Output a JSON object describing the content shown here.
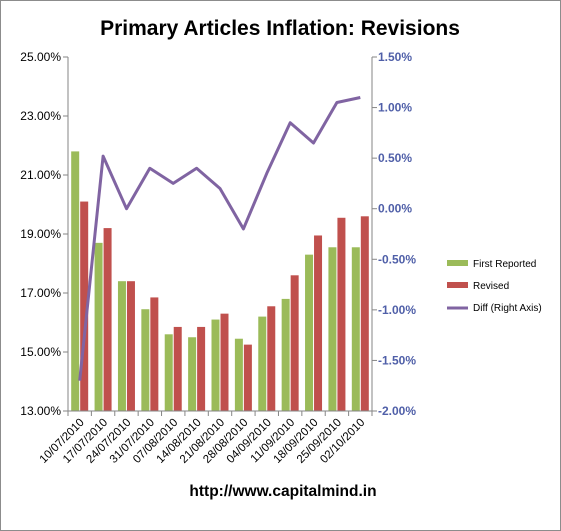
{
  "chart_data": {
    "type": "bar",
    "title": "Primary Articles Inflation: Revisions",
    "categories": [
      "10/07/2010",
      "17/07/2010",
      "24/07/2010",
      "31/07/2010",
      "07/08/2010",
      "14/08/2010",
      "21/08/2010",
      "28/08/2010",
      "04/09/2010",
      "11/09/2010",
      "18/09/2010",
      "25/09/2010",
      "02/10/2010"
    ],
    "series": [
      {
        "name": "First Reported",
        "type": "bar",
        "axis": "left",
        "color": "#9bbb59",
        "values": [
          21.8,
          18.7,
          17.4,
          16.45,
          15.6,
          15.5,
          16.1,
          15.45,
          16.2,
          16.8,
          18.3,
          18.55,
          18.55
        ]
      },
      {
        "name": "Revised",
        "type": "bar",
        "axis": "left",
        "color": "#c0504d",
        "values": [
          20.1,
          19.2,
          17.4,
          16.85,
          15.85,
          15.85,
          16.3,
          15.25,
          16.55,
          17.6,
          18.95,
          19.55,
          19.6
        ]
      },
      {
        "name": "Diff (Right Axis)",
        "type": "line",
        "axis": "right",
        "color": "#8064a2",
        "values": [
          -1.7,
          0.52,
          0.0,
          0.4,
          0.25,
          0.4,
          0.2,
          -0.2,
          0.35,
          0.85,
          0.65,
          1.05,
          1.1
        ]
      }
    ],
    "y_left": {
      "min": 13.0,
      "max": 25.0,
      "ticks": [
        "25.00%",
        "23.00%",
        "21.00%",
        "19.00%",
        "17.00%",
        "15.00%",
        "13.00%"
      ]
    },
    "y_right": {
      "min": -2.0,
      "max": 1.5,
      "ticks": [
        "1.50%",
        "1.00%",
        "0.50%",
        "0.00%",
        "-0.50%",
        "-1.00%",
        "-1.50%",
        "-2.00%"
      ]
    },
    "grid": false,
    "legend": "right"
  },
  "footer": "http://www.capitalmind.in"
}
